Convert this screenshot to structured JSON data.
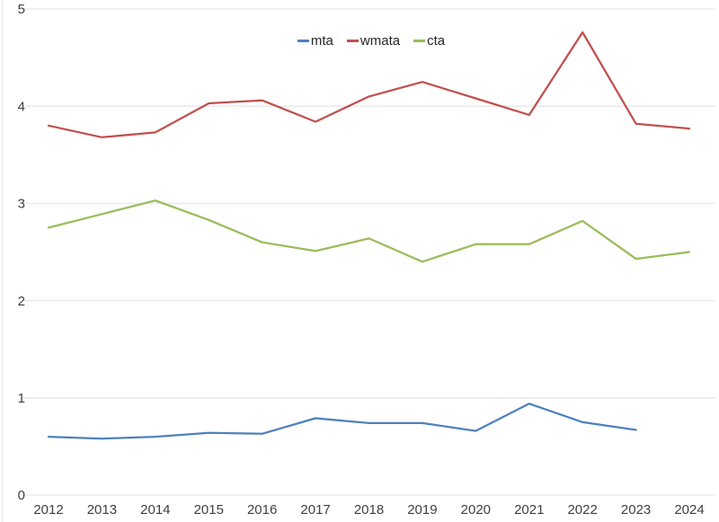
{
  "chart_data": {
    "type": "line",
    "title": "",
    "xlabel": "",
    "ylabel": "",
    "categories": [
      "2012",
      "2013",
      "2014",
      "2015",
      "2016",
      "2017",
      "2018",
      "2019",
      "2020",
      "2021",
      "2022",
      "2023",
      "2024"
    ],
    "series": [
      {
        "name": "mta",
        "color": "#4F81BD",
        "values": [
          0.6,
          0.58,
          0.6,
          0.64,
          0.63,
          0.79,
          0.74,
          0.74,
          0.66,
          0.94,
          0.75,
          0.67,
          null
        ]
      },
      {
        "name": "wmata",
        "color": "#C0504D",
        "values": [
          3.8,
          3.68,
          3.73,
          4.03,
          4.06,
          3.84,
          4.1,
          4.25,
          4.08,
          3.91,
          4.76,
          3.82,
          3.77
        ]
      },
      {
        "name": "cta",
        "color": "#9BBB59",
        "values": [
          2.75,
          2.89,
          3.03,
          2.83,
          2.6,
          2.51,
          2.64,
          2.4,
          2.58,
          2.58,
          2.82,
          2.43,
          2.5
        ]
      }
    ],
    "ylim": [
      0,
      5
    ],
    "y_ticks": [
      0,
      1,
      2,
      3,
      4,
      5
    ],
    "grid": "horizontal",
    "legend_position": "top-center"
  },
  "colors": {
    "background": "#ffffff",
    "gridline": "#ebebeb",
    "left_border": "#ececec",
    "axis_text": "#404040",
    "legend_text": "#262626"
  }
}
